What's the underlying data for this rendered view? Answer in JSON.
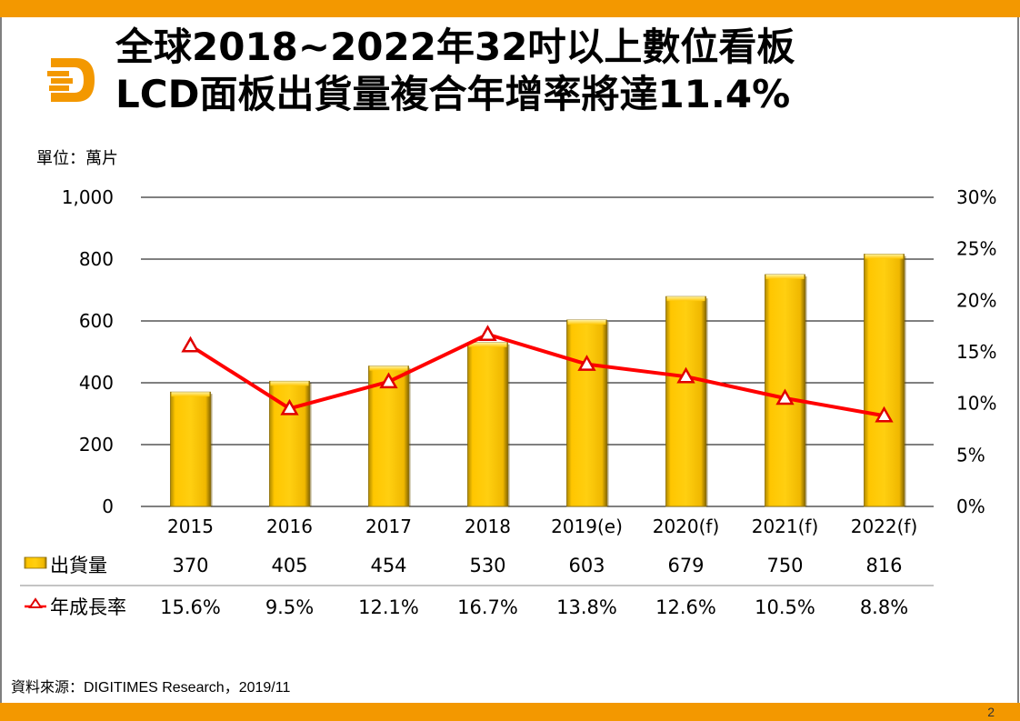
{
  "title": {
    "line1": "全球2018~2022年32吋以上數位看板",
    "line2": "LCD面板出貨量複合年增率將達11.4%"
  },
  "unit_label": "單位：萬片",
  "source": "資料來源：DIGITIMES Research，2019/11",
  "page_number": "2",
  "logo_icon": "digitimes-d-logo-icon",
  "colors": {
    "accent": "#f39800",
    "bar": "#ffc000",
    "line": "#ff0000"
  },
  "chart_data": {
    "type": "bar",
    "title": "全球2018~2022年32吋以上數位看板LCD面板出貨量複合年增率將達11.4%",
    "categories": [
      "2015",
      "2016",
      "2017",
      "2018",
      "2019(e)",
      "2020(f)",
      "2021(f)",
      "2022(f)"
    ],
    "series": [
      {
        "name": "出貨量",
        "type": "bar",
        "axis": "left",
        "values": [
          370,
          405,
          454,
          530,
          603,
          679,
          750,
          816
        ],
        "labels": [
          "370",
          "405",
          "454",
          "530",
          "603",
          "679",
          "750",
          "816"
        ]
      },
      {
        "name": "年成長率",
        "type": "line",
        "axis": "right",
        "values": [
          15.6,
          9.5,
          12.1,
          16.7,
          13.8,
          12.6,
          10.5,
          8.8
        ],
        "labels": [
          "15.6%",
          "9.5%",
          "12.1%",
          "16.7%",
          "13.8%",
          "12.6%",
          "10.5%",
          "8.8%"
        ]
      }
    ],
    "ylabel": "單位：萬片",
    "ylim": [
      0,
      1000
    ],
    "yticks": [
      "0",
      "200",
      "400",
      "600",
      "800",
      "1,000"
    ],
    "y2lim": [
      0,
      30
    ],
    "y2ticks": [
      "0%",
      "5%",
      "10%",
      "15%",
      "20%",
      "25%",
      "30%"
    ],
    "grid": true,
    "legend": "data-table-bottom"
  }
}
